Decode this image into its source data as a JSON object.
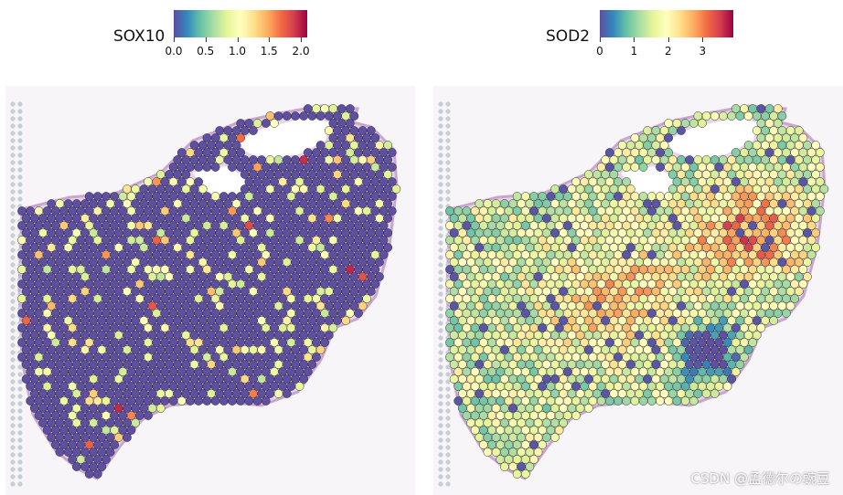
{
  "left_panel": {
    "gene": "SOX10",
    "ticks": [
      "0.0",
      "0.5",
      "1.0",
      "1.5",
      "2.0"
    ],
    "tick_values": [
      0.0,
      0.5,
      1.0,
      1.5,
      2.0
    ],
    "range": [
      0.0,
      2.1
    ],
    "mean_level": 0.15
  },
  "right_panel": {
    "gene": "SOD2",
    "ticks": [
      "0",
      "1",
      "2",
      "3"
    ],
    "tick_values": [
      0,
      1,
      2,
      3
    ],
    "range": [
      0,
      3.9
    ],
    "mean_level": 1.9
  },
  "colormap": [
    "#5e4fa2",
    "#3288bd",
    "#66c2a5",
    "#abdda4",
    "#e6f598",
    "#ffffbf",
    "#fee08b",
    "#fdae61",
    "#f46d43",
    "#d53e4f",
    "#9e0142"
  ],
  "watermark": "CSDN @孟德尔の豌豆"
}
